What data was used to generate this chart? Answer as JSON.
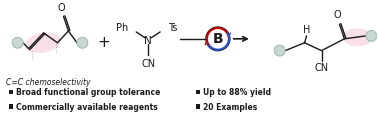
{
  "bg_color": "#ffffff",
  "bullet_color": "#1a1a1a",
  "pink_highlight": "#f0b8cc",
  "gray_circle_color": "#c8d8d0",
  "gray_circle_edge": "#9ab8b0",
  "bond_color": "#1a1a1a",
  "red_arc_color": "#cc0000",
  "blue_arc_color": "#2255cc",
  "bullet_items_left": [
    "Broad functional group tolerance",
    "Commercially available reagents"
  ],
  "bullet_items_right": [
    "Up to 88% yield",
    "20 Examples"
  ]
}
